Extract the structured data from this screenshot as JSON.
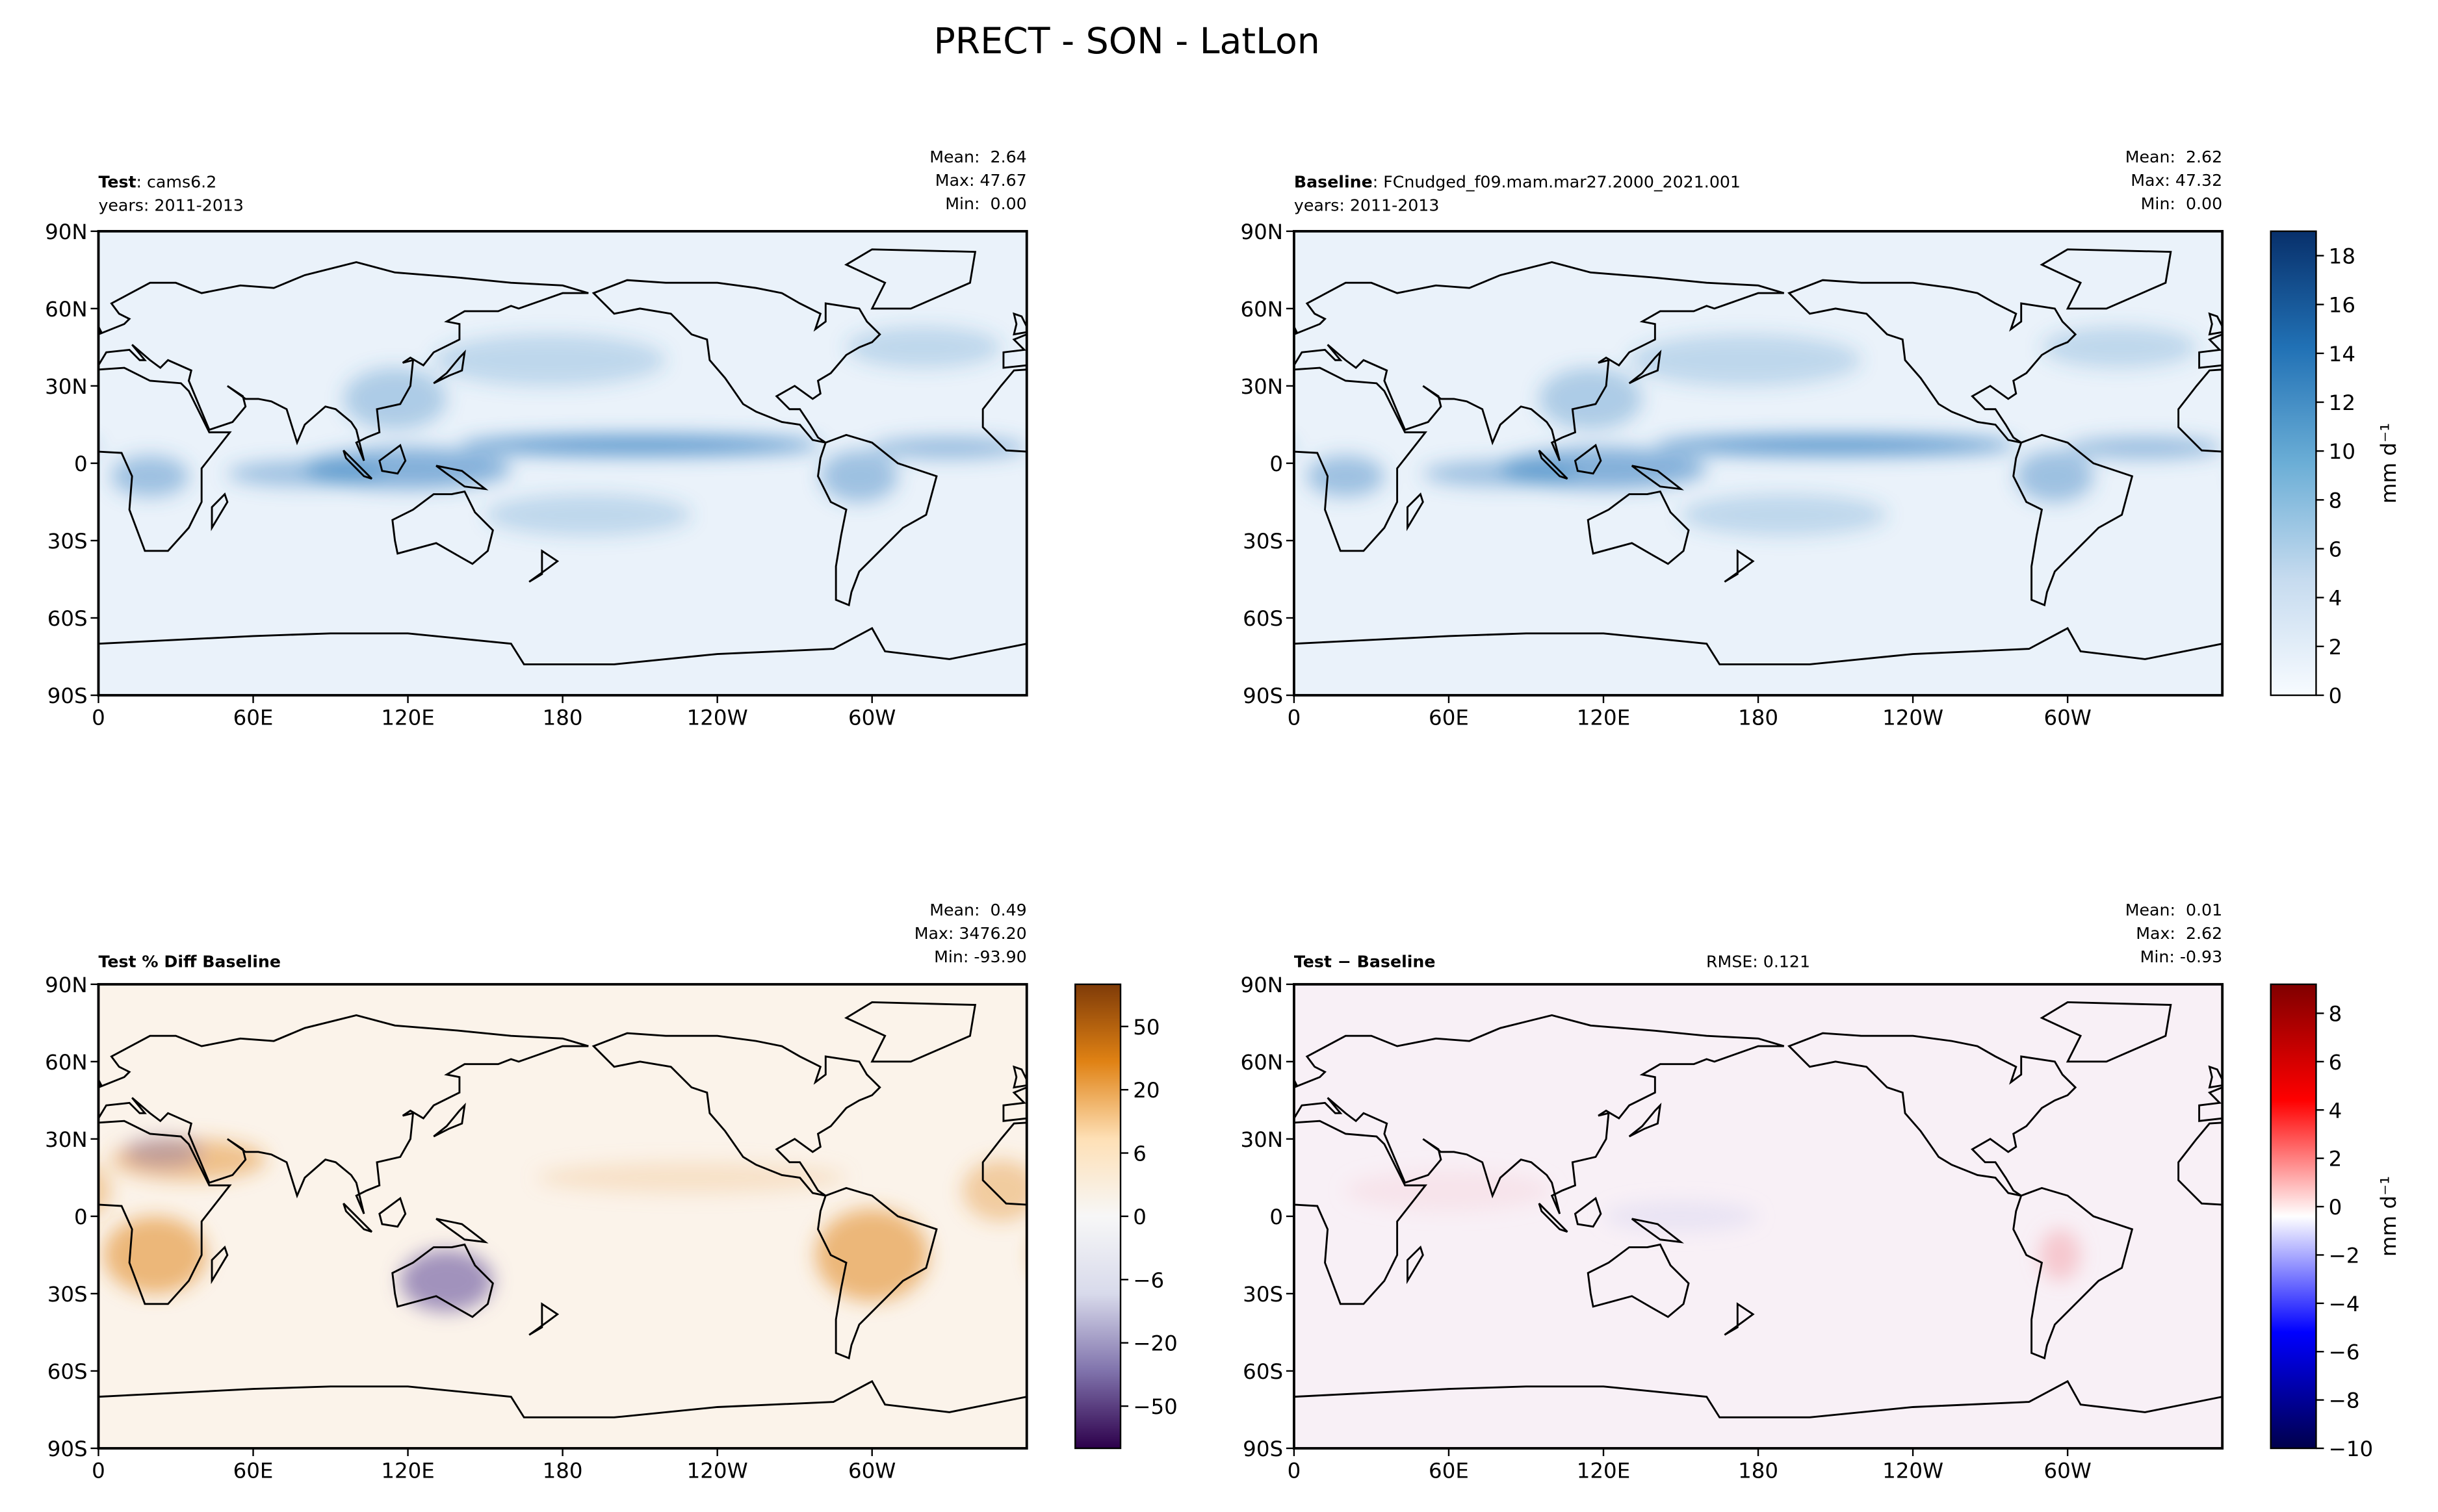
{
  "title": "PRECT - SON - LatLon",
  "chart_data": [
    {
      "type": "map",
      "title": "Test",
      "title_suffix": ": cams6.2",
      "subtitle": "years: 2011-2013",
      "stats": [
        "Mean:  2.64",
        "Max: 47.67",
        "Min:  0.00"
      ],
      "xlim": [
        0,
        360
      ],
      "ylim": [
        -90,
        90
      ],
      "xticks": [
        0,
        {
          "value": 60,
          "label": "60E"
        },
        {
          "value": 120,
          "label": "120E"
        },
        180,
        {
          "value": 240,
          "label": "120W"
        },
        {
          "value": 300,
          "label": "60W"
        }
      ],
      "yticks": [
        {
          "value": 90,
          "label": "90N"
        },
        {
          "value": 60,
          "label": "60N"
        },
        {
          "value": 30,
          "label": "30N"
        },
        0,
        {
          "value": -30,
          "label": "30S"
        },
        {
          "value": -60,
          "label": "60S"
        },
        {
          "value": -90,
          "label": "90S"
        }
      ],
      "field_color": "#eaf2fa"
    },
    {
      "type": "map",
      "title": "Baseline",
      "title_suffix": ": FCnudged_f09.mam.mar27.2000_2021.001",
      "subtitle": "years: 2011-2013",
      "stats": [
        "Mean:  2.62",
        "Max: 47.32",
        "Min:  0.00"
      ],
      "xlim": [
        0,
        360
      ],
      "ylim": [
        -90,
        90
      ],
      "xticks": [
        0,
        {
          "value": 60,
          "label": "60E"
        },
        {
          "value": 120,
          "label": "120E"
        },
        180,
        {
          "value": 240,
          "label": "120W"
        },
        {
          "value": 300,
          "label": "60W"
        }
      ],
      "yticks": [
        {
          "value": 90,
          "label": "90N"
        },
        {
          "value": 60,
          "label": "60N"
        },
        {
          "value": 30,
          "label": "30N"
        },
        0,
        {
          "value": -30,
          "label": "30S"
        },
        {
          "value": -60,
          "label": "60S"
        },
        {
          "value": -90,
          "label": "90S"
        }
      ],
      "field_color": "#eaf2fa",
      "colorbar": {
        "lim": [
          0,
          19
        ],
        "ticks": [
          0,
          2,
          4,
          6,
          8,
          10,
          12,
          14,
          16,
          18
        ],
        "label": "mm d⁻¹",
        "colormap": [
          "#f7fbff",
          "#c6dbef",
          "#6baed6",
          "#2171b5",
          "#08306b"
        ]
      }
    },
    {
      "type": "map",
      "title": "Test % Diff Baseline",
      "stats": [
        "Mean:  0.49",
        "Max: 3476.20",
        "Min: -93.90"
      ],
      "xlim": [
        0,
        360
      ],
      "ylim": [
        -90,
        90
      ],
      "xticks": [
        0,
        {
          "value": 60,
          "label": "60E"
        },
        {
          "value": 120,
          "label": "120E"
        },
        180,
        {
          "value": 240,
          "label": "120W"
        },
        {
          "value": 300,
          "label": "60W"
        }
      ],
      "yticks": [
        {
          "value": 90,
          "label": "90N"
        },
        {
          "value": 60,
          "label": "60N"
        },
        {
          "value": 30,
          "label": "30N"
        },
        0,
        {
          "value": -30,
          "label": "30S"
        },
        {
          "value": -60,
          "label": "60S"
        },
        {
          "value": -90,
          "label": "90S"
        }
      ],
      "field_color": "#fbf3ea",
      "colorbar": {
        "levels": [
          -70,
          -60,
          -50,
          -40,
          -30,
          -20,
          -15,
          -10,
          -6,
          -4,
          -2,
          0,
          2,
          4,
          6,
          10,
          15,
          20,
          30,
          40,
          50,
          60,
          70
        ],
        "ticks": [
          {
            "value": -50,
            "label": "−50"
          },
          {
            "value": -20,
            "label": "−20"
          },
          {
            "value": -6,
            "label": "−6"
          },
          0,
          6,
          20,
          50
        ],
        "colormap": [
          "#2d004b",
          "#8073ac",
          "#d8daeb",
          "#f7f7f7",
          "#fee0b6",
          "#e08214",
          "#7f3b08"
        ]
      }
    },
    {
      "type": "map",
      "title": "Test − Baseline",
      "center_text": "RMSE: 0.121",
      "stats": [
        "Mean:  0.01",
        "Max:  2.62",
        "Min: -0.93"
      ],
      "xlim": [
        0,
        360
      ],
      "ylim": [
        -90,
        90
      ],
      "xticks": [
        0,
        {
          "value": 60,
          "label": "60E"
        },
        {
          "value": 120,
          "label": "120E"
        },
        180,
        {
          "value": 240,
          "label": "120W"
        },
        {
          "value": 300,
          "label": "60W"
        }
      ],
      "yticks": [
        {
          "value": 90,
          "label": "90N"
        },
        {
          "value": 60,
          "label": "60N"
        },
        {
          "value": 30,
          "label": "30N"
        },
        0,
        {
          "value": -30,
          "label": "30S"
        },
        {
          "value": -60,
          "label": "60S"
        },
        {
          "value": -90,
          "label": "90S"
        }
      ],
      "field_color": "#f8f0f6",
      "colorbar": {
        "lim": [
          -10,
          9.2
        ],
        "ticks": [
          {
            "value": -10,
            "label": "−10"
          },
          {
            "value": -8,
            "label": "−8"
          },
          {
            "value": -6,
            "label": "−6"
          },
          {
            "value": -4,
            "label": "−4"
          },
          {
            "value": -2,
            "label": "−2"
          },
          0,
          2,
          4,
          6,
          8
        ],
        "label": "mm d⁻¹",
        "colormap": [
          "#00004c",
          "#0000ff",
          "#ffffff",
          "#ff0000",
          "#800000"
        ]
      }
    }
  ]
}
